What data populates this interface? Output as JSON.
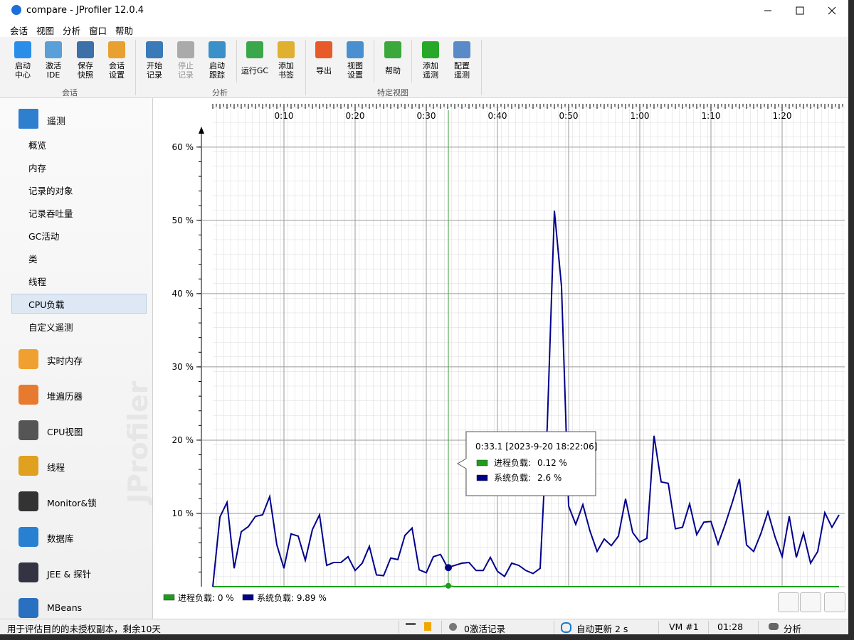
{
  "window": {
    "title": "compare - JProfiler 12.0.4"
  },
  "menu": [
    "会话",
    "视图",
    "分析",
    "窗口",
    "帮助"
  ],
  "toolbar": {
    "groups": [
      {
        "label": "会话",
        "buttons": [
          {
            "lines": [
              "启动",
              "中心"
            ]
          },
          {
            "lines": [
              "激活",
              "IDE"
            ]
          },
          {
            "lines": [
              "保存",
              "快照"
            ]
          },
          {
            "lines": [
              "会话",
              "设置"
            ]
          }
        ]
      },
      {
        "label": "分析",
        "buttons": [
          {
            "lines": [
              "开始",
              "记录"
            ]
          },
          {
            "lines": [
              "停止",
              "记录"
            ],
            "enabled": false
          },
          {
            "lines": [
              "启动",
              "跟踪"
            ]
          },
          {
            "lines": [
              "运行GC"
            ]
          },
          {
            "lines": [
              "添加",
              "书签"
            ]
          }
        ]
      },
      {
        "label": "特定视图",
        "buttons": [
          {
            "lines": [
              "导出"
            ]
          },
          {
            "lines": [
              "视图",
              "设置"
            ]
          },
          {
            "lines": [
              "帮助"
            ]
          },
          {
            "lines": [
              "添加",
              "遥测"
            ]
          },
          {
            "lines": [
              "配置",
              "遥测"
            ]
          }
        ]
      }
    ]
  },
  "sidebar": {
    "section": "遥测",
    "items": [
      "概览",
      "内存",
      "记录的对象",
      "记录吞吐量",
      "GC活动",
      "类",
      "线程",
      "CPU负载",
      "自定义遥测"
    ],
    "selected": 7,
    "modules": [
      "实时内存",
      "堆遍历器",
      "CPU视图",
      "线程",
      "Monitor&锁",
      "数据库",
      "JEE & 探针",
      "MBeans"
    ],
    "watermark": "JProfiler"
  },
  "chart": {
    "type": "line",
    "xlim": [
      0,
      88.8
    ],
    "xticks": [
      {
        "value": 10,
        "label": "0:10"
      },
      {
        "value": 20,
        "label": "0:20"
      },
      {
        "value": 30,
        "label": "0:30"
      },
      {
        "value": 40,
        "label": "0:40"
      },
      {
        "value": 50,
        "label": "0:50"
      },
      {
        "value": 60,
        "label": "1:00"
      },
      {
        "value": 70,
        "label": "1:10"
      },
      {
        "value": 80,
        "label": "1:20"
      }
    ],
    "ylim": [
      0,
      66
    ],
    "yticks": [
      {
        "value": 10,
        "label": "10 %"
      },
      {
        "value": 20,
        "label": "20 %"
      },
      {
        "value": 30,
        "label": "30 %"
      },
      {
        "value": 40,
        "label": "40 %"
      },
      {
        "value": 50,
        "label": "50 %"
      },
      {
        "value": 60,
        "label": "60 %"
      }
    ],
    "grid": true,
    "x": [
      0,
      1,
      2,
      3,
      4,
      5,
      6,
      7,
      8,
      9,
      10,
      11,
      12,
      13,
      14,
      15,
      16,
      17,
      18,
      19,
      20,
      21,
      22,
      23,
      24,
      25,
      26,
      27,
      28,
      29,
      30,
      31,
      32,
      33,
      34,
      35,
      36,
      37,
      38,
      39,
      40,
      41,
      42,
      43,
      44,
      45,
      46,
      47,
      48,
      49,
      50,
      51,
      52,
      53,
      54,
      55,
      56,
      57,
      58,
      59,
      60,
      61,
      62,
      63,
      64,
      65,
      66,
      67,
      68,
      69,
      70,
      71,
      72,
      73,
      74,
      75,
      76,
      77,
      78,
      79,
      80,
      81,
      82,
      83,
      84,
      85,
      86,
      87,
      88
    ],
    "series": [
      {
        "legend": "进程负载: 0 %",
        "color": "#1a9e1a",
        "values": [
          0,
          0,
          0,
          0,
          0,
          0,
          0,
          0,
          0,
          0,
          0,
          0,
          0,
          0,
          0,
          0,
          0,
          0,
          0,
          0,
          0,
          0,
          0,
          0,
          0,
          0,
          0,
          0,
          0,
          0,
          0,
          0,
          0,
          0.12,
          0,
          0,
          0,
          0,
          0,
          0,
          0,
          0,
          0,
          0,
          0,
          0,
          0,
          0,
          0,
          0,
          0,
          0,
          0,
          0,
          0,
          0,
          0,
          0,
          0,
          0,
          0,
          0,
          0,
          0,
          0,
          0,
          0,
          0,
          0,
          0,
          0,
          0,
          0,
          0,
          0,
          0,
          0,
          0,
          0,
          0,
          0,
          0,
          0,
          0,
          0,
          0,
          0,
          0,
          0
        ]
      },
      {
        "legend": "系统负载: 9.89 %",
        "color": "#00008b",
        "values": [
          0,
          9.5,
          11.5,
          2.5,
          7.5,
          8.2,
          9.6,
          9.8,
          12.3,
          5.7,
          2.5,
          7.2,
          6.9,
          3.6,
          7.8,
          9.8,
          2.9,
          3.3,
          3.3,
          4.1,
          2.2,
          3.2,
          5.5,
          1.6,
          1.5,
          3.9,
          3.7,
          7.0,
          8.0,
          2.3,
          1.9,
          4.1,
          4.4,
          2.6,
          2.9,
          3.2,
          3.3,
          2.2,
          2.2,
          4.0,
          2.1,
          1.4,
          3.2,
          2.9,
          2.2,
          1.8,
          2.5,
          22,
          51.3,
          41,
          11,
          8.5,
          11.2,
          7.6,
          4.8,
          6.5,
          5.6,
          6.9,
          12,
          7.4,
          6.1,
          6.6,
          20.6,
          14.3,
          14.1,
          7.9,
          8.1,
          11.3,
          7.1,
          8.8,
          8.9,
          5.8,
          8.5,
          11.5,
          14.7,
          5.7,
          4.8,
          7.2,
          10.2,
          6.8,
          4.1,
          9.6,
          4.0,
          7.3,
          3.2,
          4.8,
          10.1,
          8.1,
          9.8
        ]
      }
    ],
    "cursor": 33.1,
    "tooltip": {
      "title": "0:33.1 [2023-9-20 18:22:06]",
      "rows": [
        {
          "name": "进程负载:",
          "value": "0.12 %"
        },
        {
          "name": "系统负载:",
          "value": "2.6 %"
        }
      ]
    }
  },
  "status": {
    "message": "用于评估目的的未授权副本，剩余10天",
    "recordings": "0激活记录",
    "refresh": "自动更新 2 s",
    "vm": "VM #1",
    "time": "01:28",
    "mode": "分析"
  }
}
